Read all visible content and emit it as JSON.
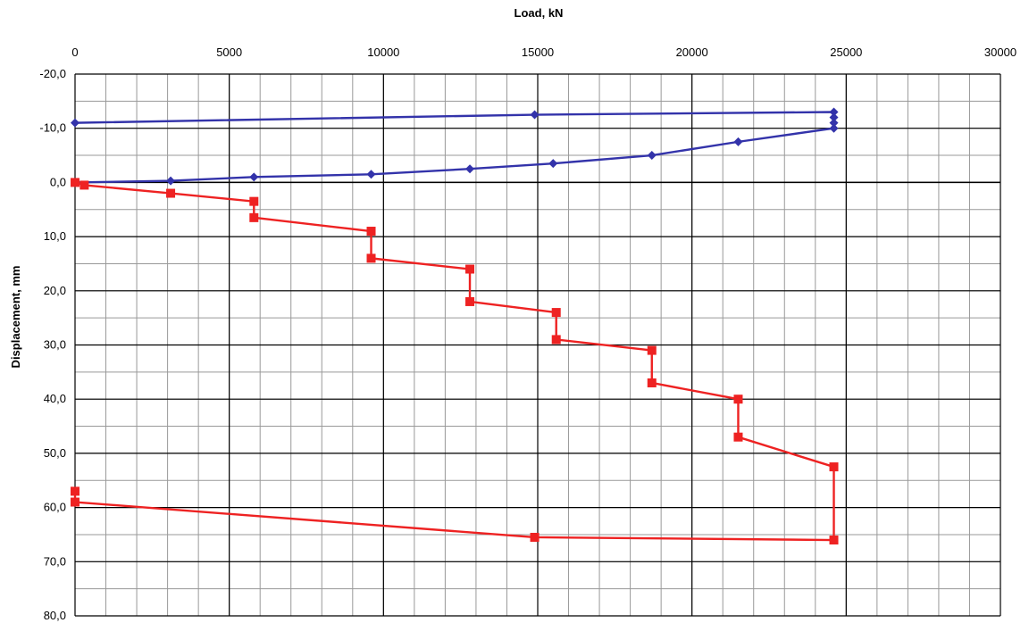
{
  "chart_data": {
    "type": "line",
    "title": "",
    "xlabel": "Load, kN",
    "ylabel": "Displacement, mm",
    "x_axis_position": "top",
    "y_axis_inverted": true,
    "xlim": [
      0,
      30000
    ],
    "ylim": [
      -20,
      80
    ],
    "x_ticks": [
      0,
      5000,
      10000,
      15000,
      20000,
      25000,
      30000
    ],
    "x_tick_labels": [
      "0",
      "5000",
      "10000",
      "15000",
      "20000",
      "25000",
      "30000"
    ],
    "y_ticks": [
      -20,
      -10,
      0,
      10,
      20,
      30,
      40,
      50,
      60,
      70,
      80
    ],
    "y_tick_labels": [
      "-20,0",
      "-10,0",
      "0,0",
      "10,0",
      "20,0",
      "30,0",
      "40,0",
      "50,0",
      "60,0",
      "70,0",
      "80,0"
    ],
    "x_minor_step": 1000,
    "y_minor_step": 5,
    "grid": true,
    "colors": {
      "series_upper": "#3333aa",
      "series_lower": "#ee2222",
      "grid_minor": "#999999",
      "grid_major": "#000000"
    },
    "series": [
      {
        "marker": "diamond",
        "points": [
          [
            0,
            0
          ],
          [
            3100,
            -0.3
          ],
          [
            5800,
            -1
          ],
          [
            9600,
            -1.5
          ],
          [
            12800,
            -2.5
          ],
          [
            15500,
            -3.5
          ],
          [
            18700,
            -5
          ],
          [
            21500,
            -7.5
          ],
          [
            24600,
            -10
          ],
          [
            24600,
            -11
          ],
          [
            24600,
            -12
          ],
          [
            24600,
            -13
          ],
          [
            14900,
            -12.5
          ],
          [
            0,
            -11
          ]
        ]
      },
      {
        "marker": "square",
        "points": [
          [
            0,
            0
          ],
          [
            300,
            0.5
          ],
          [
            3100,
            2
          ],
          [
            5800,
            3.5
          ],
          [
            5800,
            6.5
          ],
          [
            9600,
            9
          ],
          [
            9600,
            14
          ],
          [
            12800,
            16
          ],
          [
            12800,
            22
          ],
          [
            15600,
            24
          ],
          [
            15600,
            29
          ],
          [
            18700,
            31
          ],
          [
            18700,
            37
          ],
          [
            21500,
            40
          ],
          [
            21500,
            47
          ],
          [
            24600,
            52.5
          ],
          [
            24600,
            66
          ],
          [
            14900,
            65.5
          ],
          [
            0,
            59
          ],
          [
            0,
            57
          ]
        ]
      }
    ]
  }
}
